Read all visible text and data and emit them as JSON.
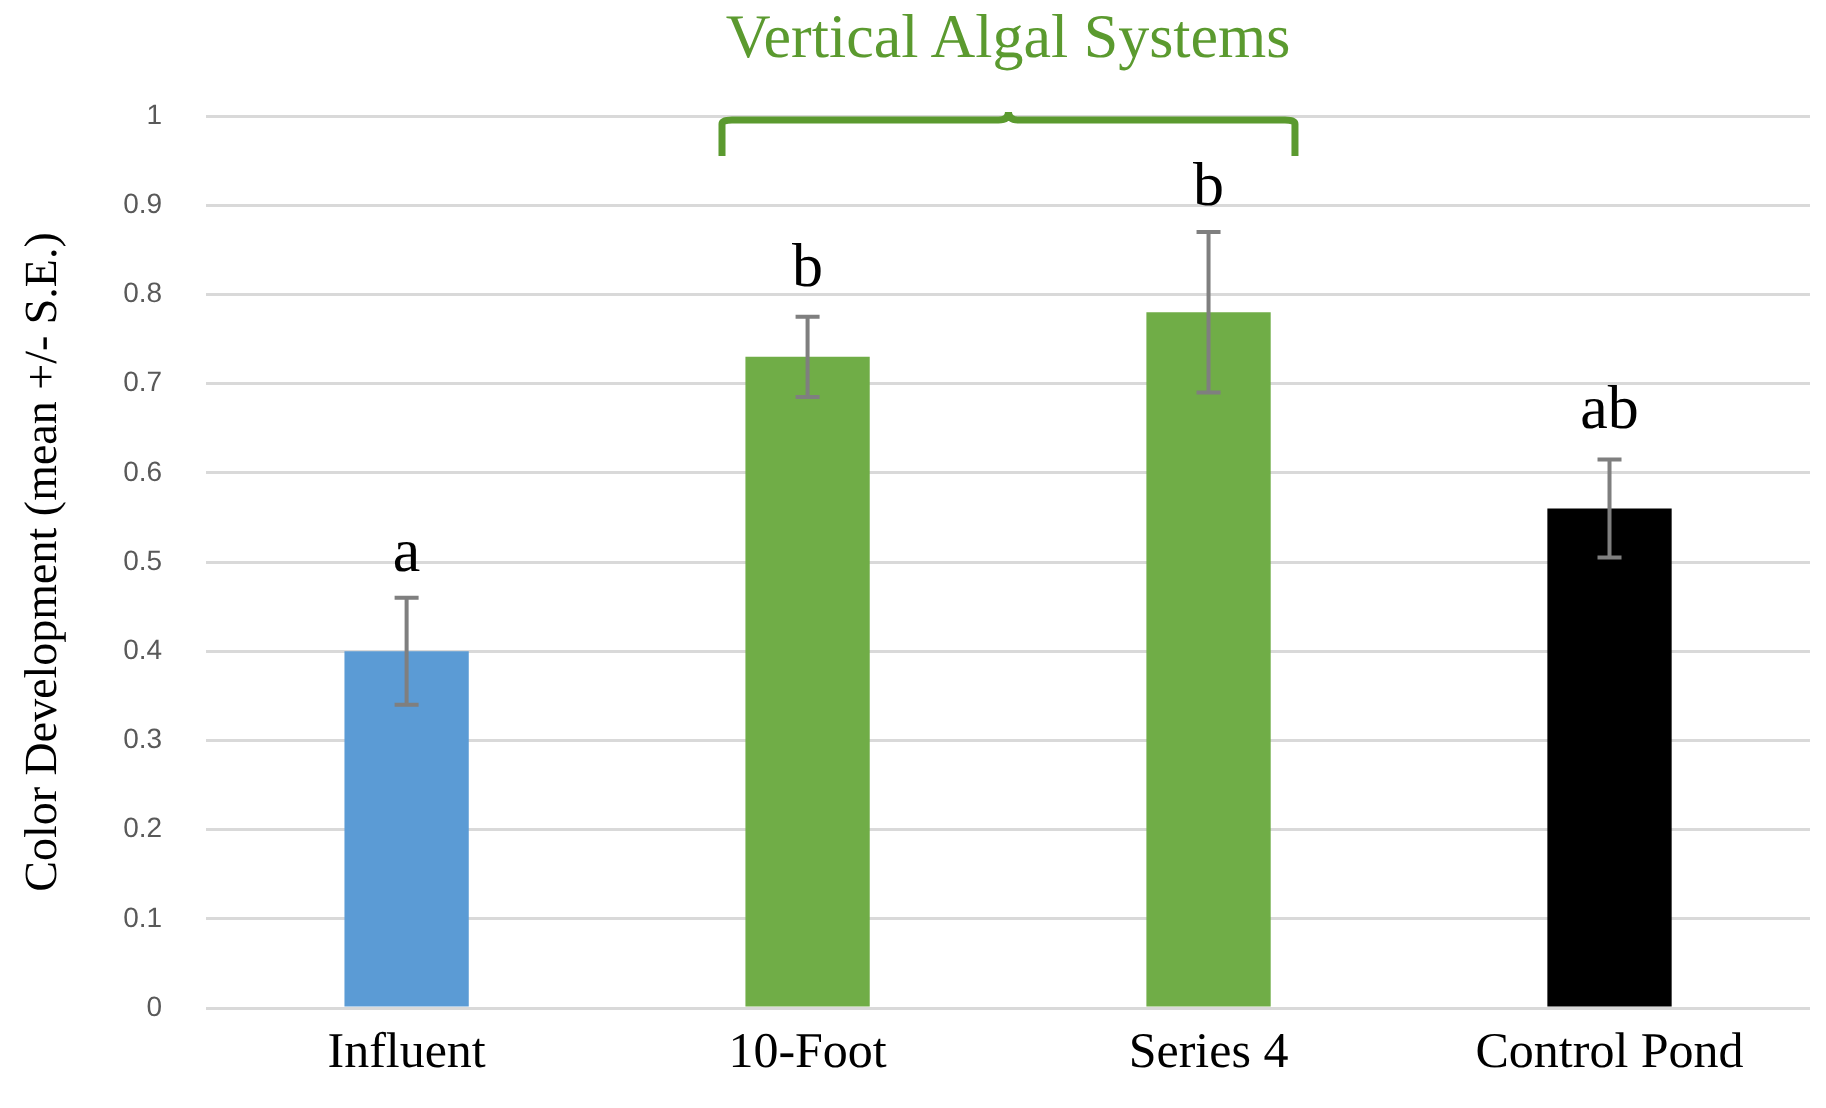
{
  "chart_data": {
    "type": "bar",
    "ylabel": "Color Development (mean +/- S.E.)",
    "categories": [
      "Influent",
      "10-Foot",
      "Series 4",
      "Control Pond"
    ],
    "values": [
      0.4,
      0.73,
      0.78,
      0.56
    ],
    "colors": [
      "#5b9bd5",
      "#70ad47",
      "#70ad47",
      "#000000"
    ],
    "errors": [
      0.06,
      0.045,
      0.09,
      0.055
    ],
    "ylim": [
      0,
      1
    ],
    "yticks": [
      0,
      0.1,
      0.2,
      0.3,
      0.4,
      0.5,
      0.6,
      0.7,
      0.8,
      0.9,
      1
    ],
    "grid": "y",
    "legend": false,
    "annotations": [
      "Vertical Algal Systems",
      {
        "text": "a",
        "x": "Influent",
        "y": 0.46
      },
      {
        "text": "b",
        "x": "10-Foot",
        "y": 0.78
      },
      {
        "text": "b",
        "x": "Series 4",
        "y": 0.87
      },
      {
        "text": "ab",
        "x": "Control Pond",
        "y": 0.62
      }
    ]
  }
}
